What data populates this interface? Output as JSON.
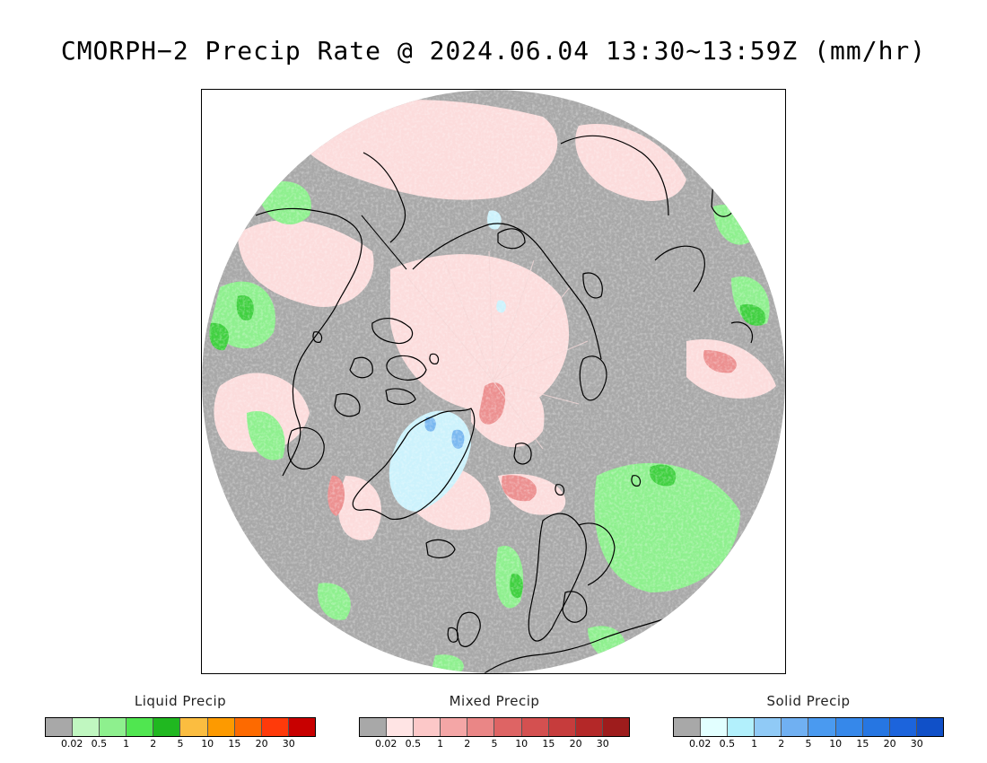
{
  "title": "CMORPH−2 Precip Rate @ 2024.06.04 13:30~13:59Z (mm/hr)",
  "map": {
    "projection": "north-polar-stereographic",
    "background_color": "#a8a8a8",
    "coastline_color": "#000000"
  },
  "legends": [
    {
      "title": "Liquid Precip",
      "colors": [
        "#a8a8a8",
        "#c0f7c0",
        "#8ef08e",
        "#50e650",
        "#20b820",
        "#fbbd40",
        "#fd9a00",
        "#fd6a00",
        "#ff3a0a",
        "#c80000"
      ],
      "ticks": [
        "0.02",
        "0.5",
        "1",
        "2",
        "5",
        "10",
        "15",
        "20",
        "30"
      ]
    },
    {
      "title": "Mixed Precip",
      "colors": [
        "#a8a8a8",
        "#ffe4e4",
        "#fcc8c8",
        "#f4a6a6",
        "#ea8686",
        "#de6464",
        "#d45050",
        "#c63c3c",
        "#b42828",
        "#9e1c1c"
      ],
      "ticks": [
        "0.02",
        "0.5",
        "1",
        "2",
        "5",
        "10",
        "15",
        "20",
        "30"
      ]
    },
    {
      "title": "Solid Precip",
      "colors": [
        "#a8a8a8",
        "#e2ffff",
        "#b2f0fc",
        "#90caf6",
        "#70b0f2",
        "#4a9af0",
        "#3688ea",
        "#2676e2",
        "#1c64dc",
        "#1050c8"
      ],
      "ticks": [
        "0.02",
        "0.5",
        "1",
        "2",
        "5",
        "10",
        "15",
        "20",
        "30"
      ]
    }
  ]
}
